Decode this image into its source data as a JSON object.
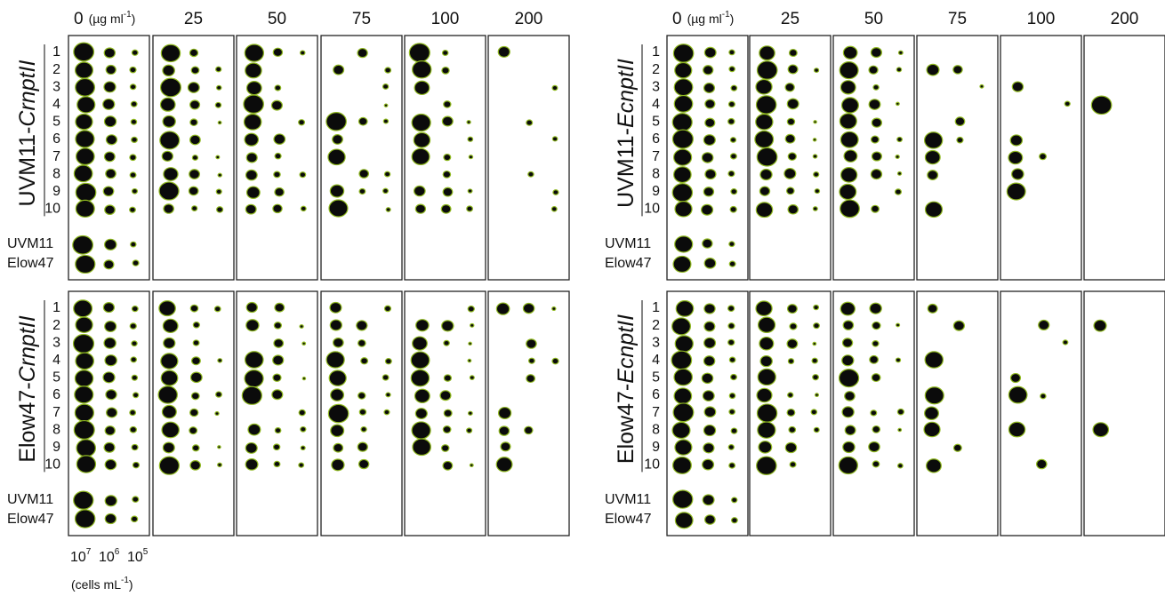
{
  "header": {
    "concentrations": [
      "0",
      "25",
      "50",
      "75",
      "100",
      "200"
    ],
    "unit": "(µg ml",
    "unit_exponent": "-1",
    "unit_close": ")"
  },
  "panels": [
    {
      "strain": "UVM11-",
      "gene": "CrnptII",
      "rows": [
        "1",
        "2",
        "3",
        "4",
        "5",
        "6",
        "7",
        "8",
        "9",
        "10",
        "UVM11",
        "Elow47"
      ]
    },
    {
      "strain": "UVM11-",
      "gene": "EcnptII",
      "rows": [
        "1",
        "2",
        "3",
        "4",
        "5",
        "6",
        "7",
        "8",
        "9",
        "10",
        "UVM11",
        "Elow47"
      ]
    },
    {
      "strain": "Elow47-",
      "gene": "CrnptII",
      "rows": [
        "1",
        "2",
        "3",
        "4",
        "5",
        "6",
        "7",
        "8",
        "9",
        "10",
        "UVM11",
        "Elow47"
      ]
    },
    {
      "strain": "Elow47-",
      "gene": "EcnptII",
      "rows": [
        "1",
        "2",
        "3",
        "4",
        "5",
        "6",
        "7",
        "8",
        "9",
        "10",
        "UVM11",
        "Elow47"
      ]
    }
  ],
  "footer": {
    "dilutions": [
      {
        "base": "10",
        "exponent": "7"
      },
      {
        "base": "10",
        "exponent": "6"
      },
      {
        "base": "10",
        "exponent": "5"
      }
    ],
    "unit": "(cells mL",
    "unit_exponent": "-1",
    "unit_close": ")"
  }
}
